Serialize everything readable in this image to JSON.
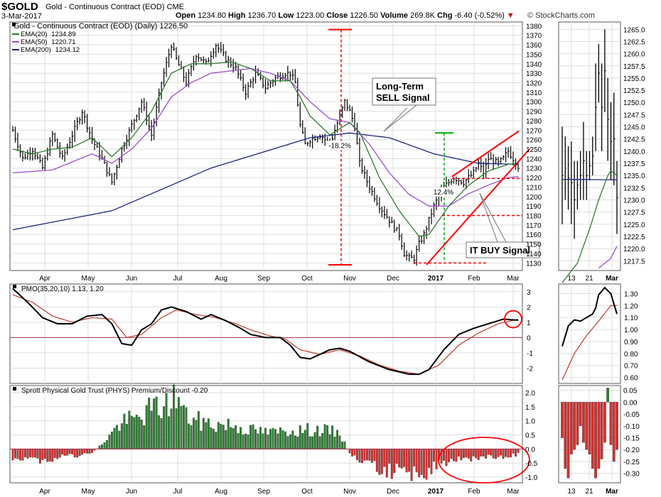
{
  "header": {
    "symbol": "$GOLD",
    "name": "Gold - Continuous Contract (EOD) CME",
    "date": "3-Mar-2017",
    "open_label": "Open",
    "open": "1234.80",
    "high_label": "High",
    "high": "1236.70",
    "low_label": "Low",
    "low": "1223.00",
    "close_label": "Close",
    "close": "1226.50",
    "volume_label": "Volume",
    "volume": "269.8K",
    "chg_label": "Chg",
    "chg": "-6.40 (-0.52%)",
    "brand": "© StockCharts.com"
  },
  "colors": {
    "ema20": "#2e7d32",
    "ema50": "#9c4fd0",
    "ema200": "#1a237e",
    "pmo": "#000000",
    "pmo_signal": "#c0392b",
    "positive_bar": "#2e7d32",
    "negative_bar": "#d32f2f",
    "annotation": "#ff0000",
    "green_marker": "#00aa00",
    "grid": "#dddddd"
  },
  "chart_data": [
    {
      "type": "line",
      "panel": "price",
      "title": "Gold - Continuous Contract (EOD) (Daily) 1226.50",
      "legend": [
        {
          "name": "EMA(20)",
          "value": "1234.89",
          "color": "#2e7d32"
        },
        {
          "name": "EMA(50)",
          "value": "1220.71",
          "color": "#9c4fd0"
        },
        {
          "name": "EMA(200)",
          "value": "1234.12",
          "color": "#1a237e"
        }
      ],
      "x_labels": [
        "Apr",
        "May",
        "Jun",
        "Jul",
        "Aug",
        "Sep",
        "Oct",
        "Nov",
        "Dec",
        "2017",
        "Feb",
        "Mar"
      ],
      "y_ticks": [
        1130,
        1140,
        1150,
        1160,
        1170,
        1180,
        1190,
        1200,
        1210,
        1220,
        1230,
        1240,
        1250,
        1260,
        1270,
        1280,
        1290,
        1300,
        1310,
        1320,
        1330,
        1340,
        1350,
        1360,
        1370,
        1380
      ],
      "ylim": [
        1122,
        1384
      ],
      "price_anchors": [
        [
          0,
          1270
        ],
        [
          4,
          1240
        ],
        [
          8,
          1250
        ],
        [
          12,
          1230
        ],
        [
          16,
          1265
        ],
        [
          20,
          1240
        ],
        [
          24,
          1265
        ],
        [
          28,
          1290
        ],
        [
          32,
          1260
        ],
        [
          36,
          1240
        ],
        [
          40,
          1215
        ],
        [
          44,
          1250
        ],
        [
          48,
          1275
        ],
        [
          52,
          1300
        ],
        [
          56,
          1265
        ],
        [
          60,
          1320
        ],
        [
          64,
          1360
        ],
        [
          66,
          1345
        ],
        [
          70,
          1320
        ],
        [
          74,
          1350
        ],
        [
          78,
          1340
        ],
        [
          82,
          1360
        ],
        [
          86,
          1345
        ],
        [
          90,
          1335
        ],
        [
          94,
          1310
        ],
        [
          98,
          1330
        ],
        [
          102,
          1315
        ],
        [
          106,
          1325
        ],
        [
          110,
          1330
        ],
        [
          112,
          1330
        ],
        [
          114,
          1320
        ],
        [
          116,
          1275
        ],
        [
          118,
          1255
        ],
        [
          120,
          1260
        ],
        [
          124,
          1265
        ],
        [
          128,
          1255
        ],
        [
          130,
          1270
        ],
        [
          132,
          1285
        ],
        [
          134,
          1300
        ],
        [
          136,
          1290
        ],
        [
          138,
          1275
        ],
        [
          140,
          1235
        ],
        [
          144,
          1210
        ],
        [
          148,
          1190
        ],
        [
          152,
          1175
        ],
        [
          156,
          1160
        ],
        [
          158,
          1140
        ],
        [
          160,
          1135
        ],
        [
          162,
          1135
        ],
        [
          164,
          1150
        ],
        [
          166,
          1160
        ],
        [
          168,
          1175
        ],
        [
          170,
          1190
        ],
        [
          174,
          1210
        ],
        [
          178,
          1220
        ],
        [
          182,
          1215
        ],
        [
          186,
          1225
        ],
        [
          188,
          1235
        ],
        [
          190,
          1225
        ],
        [
          192,
          1240
        ],
        [
          196,
          1235
        ],
        [
          198,
          1240
        ],
        [
          200,
          1248
        ],
        [
          202,
          1240
        ],
        [
          204,
          1232
        ]
      ],
      "ema20_anchors": [
        [
          0,
          1250
        ],
        [
          8,
          1245
        ],
        [
          16,
          1250
        ],
        [
          24,
          1252
        ],
        [
          32,
          1262
        ],
        [
          40,
          1242
        ],
        [
          48,
          1262
        ],
        [
          56,
          1290
        ],
        [
          64,
          1330
        ],
        [
          72,
          1340
        ],
        [
          80,
          1340
        ],
        [
          88,
          1342
        ],
        [
          96,
          1335
        ],
        [
          104,
          1322
        ],
        [
          112,
          1322
        ],
        [
          116,
          1305
        ],
        [
          120,
          1285
        ],
        [
          128,
          1265
        ],
        [
          136,
          1278
        ],
        [
          140,
          1268
        ],
        [
          148,
          1220
        ],
        [
          156,
          1185
        ],
        [
          164,
          1158
        ],
        [
          168,
          1160
        ],
        [
          176,
          1190
        ],
        [
          184,
          1212
        ],
        [
          192,
          1227
        ],
        [
          200,
          1234
        ],
        [
          204,
          1235
        ]
      ],
      "ema50_anchors": [
        [
          0,
          1225
        ],
        [
          16,
          1228
        ],
        [
          32,
          1245
        ],
        [
          40,
          1235
        ],
        [
          48,
          1250
        ],
        [
          56,
          1272
        ],
        [
          64,
          1305
        ],
        [
          72,
          1320
        ],
        [
          80,
          1330
        ],
        [
          96,
          1335
        ],
        [
          104,
          1330
        ],
        [
          112,
          1322
        ],
        [
          120,
          1300
        ],
        [
          128,
          1282
        ],
        [
          136,
          1278
        ],
        [
          144,
          1255
        ],
        [
          152,
          1225
        ],
        [
          160,
          1202
        ],
        [
          168,
          1190
        ],
        [
          176,
          1190
        ],
        [
          184,
          1203
        ],
        [
          192,
          1212
        ],
        [
          200,
          1220
        ],
        [
          204,
          1221
        ]
      ],
      "ema200_anchors": [
        [
          0,
          1165
        ],
        [
          40,
          1185
        ],
        [
          80,
          1230
        ],
        [
          120,
          1262
        ],
        [
          136,
          1267
        ],
        [
          152,
          1262
        ],
        [
          170,
          1245
        ],
        [
          188,
          1235
        ],
        [
          204,
          1234
        ]
      ],
      "annotations": [
        {
          "label": "Long-Term SELL Signal"
        },
        {
          "label": "IT BUY Signal"
        },
        {
          "label": "-18.2%"
        },
        {
          "label": "12.4%"
        }
      ]
    },
    {
      "type": "line",
      "panel": "pmo",
      "title": "PMO(35,20,10) 1.13, 1.20",
      "ylim": [
        -3,
        3.5
      ],
      "y_ticks": [
        3,
        2,
        1,
        0,
        -1,
        -2
      ],
      "pmo_anchors": [
        [
          0,
          3.2
        ],
        [
          6,
          2.3
        ],
        [
          12,
          1.3
        ],
        [
          18,
          0.9
        ],
        [
          24,
          0.9
        ],
        [
          30,
          1.4
        ],
        [
          36,
          1.5
        ],
        [
          40,
          0.9
        ],
        [
          44,
          -0.4
        ],
        [
          48,
          -0.5
        ],
        [
          52,
          0.5
        ],
        [
          56,
          0.9
        ],
        [
          60,
          1.8
        ],
        [
          64,
          2.0
        ],
        [
          70,
          1.7
        ],
        [
          76,
          1.2
        ],
        [
          80,
          1.5
        ],
        [
          86,
          1.1
        ],
        [
          92,
          0.6
        ],
        [
          96,
          0.2
        ],
        [
          102,
          0.0
        ],
        [
          108,
          0.0
        ],
        [
          112,
          -0.5
        ],
        [
          116,
          -1.3
        ],
        [
          120,
          -1.4
        ],
        [
          124,
          -1.1
        ],
        [
          128,
          -0.8
        ],
        [
          132,
          -0.7
        ],
        [
          136,
          -0.9
        ],
        [
          144,
          -1.6
        ],
        [
          152,
          -2.1
        ],
        [
          160,
          -2.4
        ],
        [
          164,
          -2.4
        ],
        [
          168,
          -2.1
        ],
        [
          174,
          -0.8
        ],
        [
          180,
          0.2
        ],
        [
          186,
          0.6
        ],
        [
          192,
          0.9
        ],
        [
          198,
          1.2
        ],
        [
          204,
          1.13
        ]
      ],
      "signal_anchors": [
        [
          0,
          2.8
        ],
        [
          8,
          2.3
        ],
        [
          16,
          1.4
        ],
        [
          24,
          1.0
        ],
        [
          32,
          1.3
        ],
        [
          40,
          1.2
        ],
        [
          46,
          0.0
        ],
        [
          52,
          0.2
        ],
        [
          60,
          1.3
        ],
        [
          66,
          1.8
        ],
        [
          74,
          1.5
        ],
        [
          82,
          1.3
        ],
        [
          90,
          0.9
        ],
        [
          96,
          0.5
        ],
        [
          104,
          0.1
        ],
        [
          110,
          -0.1
        ],
        [
          116,
          -0.8
        ],
        [
          124,
          -1.1
        ],
        [
          132,
          -0.8
        ],
        [
          140,
          -1.2
        ],
        [
          148,
          -1.8
        ],
        [
          156,
          -2.2
        ],
        [
          164,
          -2.4
        ],
        [
          172,
          -1.8
        ],
        [
          180,
          -0.5
        ],
        [
          188,
          0.3
        ],
        [
          196,
          0.9
        ],
        [
          204,
          1.2
        ]
      ]
    },
    {
      "type": "bar",
      "panel": "premium",
      "title": "Sprott Physical Gold Trust (PHYS) Premium/Discount -0.20",
      "ylim": [
        -1.2,
        2.25
      ],
      "y_ticks": [
        2.0,
        1.5,
        1.0,
        0.5,
        0.0,
        -0.5,
        -1.0
      ],
      "premium_anchors": [
        [
          0,
          -0.3
        ],
        [
          10,
          -0.4
        ],
        [
          20,
          -0.3
        ],
        [
          30,
          -0.2
        ],
        [
          34,
          0.0
        ],
        [
          38,
          0.4
        ],
        [
          44,
          1.0
        ],
        [
          50,
          1.1
        ],
        [
          56,
          1.5
        ],
        [
          62,
          1.6
        ],
        [
          66,
          2.0
        ],
        [
          70,
          1.2
        ],
        [
          76,
          1.0
        ],
        [
          82,
          0.9
        ],
        [
          88,
          0.9
        ],
        [
          96,
          0.7
        ],
        [
          104,
          0.6
        ],
        [
          112,
          0.7
        ],
        [
          118,
          0.7
        ],
        [
          124,
          0.7
        ],
        [
          132,
          0.6
        ],
        [
          134,
          0.2
        ],
        [
          136,
          -0.2
        ],
        [
          144,
          -0.6
        ],
        [
          152,
          -0.8
        ],
        [
          160,
          -0.9
        ],
        [
          166,
          -0.9
        ],
        [
          172,
          -0.6
        ],
        [
          180,
          -0.4
        ],
        [
          188,
          -0.3
        ],
        [
          196,
          -0.3
        ],
        [
          204,
          -0.2
        ]
      ]
    },
    {
      "type": "bar",
      "panel": "zoom-price",
      "x_labels": [
        "13",
        "21",
        "Mar"
      ],
      "y_ticks": [
        1265.0,
        1262.5,
        1260.0,
        1257.5,
        1255.0,
        1252.5,
        1250.0,
        1247.5,
        1245.0,
        1242.5,
        1240.0,
        1237.5,
        1235.0,
        1232.5,
        1230.0,
        1227.5,
        1225.0,
        1222.5,
        1220.0,
        1217.5
      ],
      "ylim": [
        1215.5,
        1266.5
      ],
      "bars": [
        [
          1245,
          1225
        ],
        [
          1243,
          1230
        ],
        [
          1241,
          1228
        ],
        [
          1242,
          1225
        ],
        [
          1238,
          1222
        ],
        [
          1238,
          1228
        ],
        [
          1240,
          1230
        ],
        [
          1246,
          1230
        ],
        [
          1240,
          1230
        ],
        [
          1240,
          1234
        ],
        [
          1243,
          1235
        ],
        [
          1258,
          1240
        ],
        [
          1262,
          1250
        ],
        [
          1258,
          1240
        ],
        [
          1265,
          1248
        ],
        [
          1255,
          1238
        ],
        [
          1250,
          1234
        ],
        [
          1252,
          1233
        ],
        [
          1238,
          1223
        ]
      ],
      "ema20_zoom": [
        [
          0,
          1213
        ],
        [
          5,
          1217
        ],
        [
          9,
          1224
        ],
        [
          12,
          1230
        ],
        [
          15,
          1235
        ],
        [
          16,
          1236
        ],
        [
          18,
          1235
        ]
      ],
      "ema50_zoom": [
        [
          12,
          1216
        ],
        [
          16,
          1218
        ],
        [
          18,
          1220.5
        ]
      ],
      "ema200_zoom": [
        [
          0,
          1234.2
        ],
        [
          18,
          1234.12
        ]
      ]
    },
    {
      "type": "line",
      "panel": "zoom-pmo",
      "y_ticks": [
        1.3,
        1.2,
        1.1,
        1.0,
        0.9,
        0.8,
        0.7,
        0.6
      ],
      "ylim": [
        0.55,
        1.38
      ],
      "pmo_zoom": [
        [
          0,
          0.86
        ],
        [
          2,
          1.03
        ],
        [
          4,
          1.08
        ],
        [
          6,
          1.07
        ],
        [
          8,
          1.1
        ],
        [
          10,
          1.13
        ],
        [
          11,
          1.18
        ],
        [
          12,
          1.29
        ],
        [
          14,
          1.35
        ],
        [
          16,
          1.3
        ],
        [
          18,
          1.13
        ]
      ],
      "signal_zoom": [
        [
          0,
          0.58
        ],
        [
          4,
          0.8
        ],
        [
          8,
          0.95
        ],
        [
          12,
          1.07
        ],
        [
          16,
          1.2
        ],
        [
          18,
          1.2
        ]
      ]
    },
    {
      "type": "bar",
      "panel": "zoom-premium",
      "x_labels": [
        "13",
        "21",
        "Mar"
      ],
      "y_ticks": [
        0.05,
        0.0,
        -0.05,
        -0.1,
        -0.15,
        -0.2,
        -0.25,
        -0.3
      ],
      "ylim": [
        -0.34,
        0.07
      ],
      "values": [
        -0.15,
        -0.28,
        -0.32,
        -0.22,
        -0.2,
        -0.18,
        -0.1,
        -0.17,
        -0.2,
        -0.22,
        -0.28,
        -0.32,
        -0.28,
        -0.24,
        -0.17,
        0.06,
        -0.18,
        -0.25,
        -0.2
      ]
    }
  ]
}
